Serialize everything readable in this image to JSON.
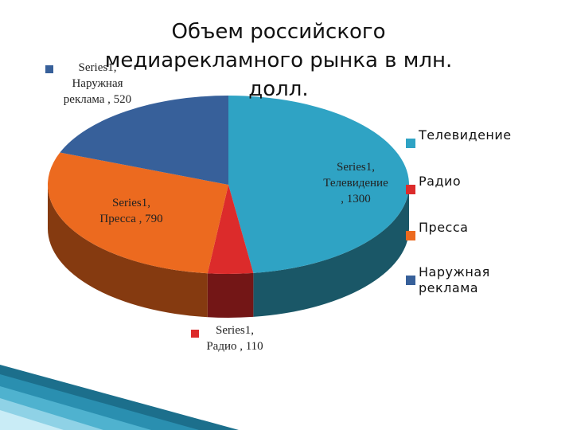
{
  "chart_data": {
    "type": "pie",
    "title": "Объем российского медиарекламного рынка в млн. долл.",
    "series_name": "Series1",
    "categories": [
      "Телевидение",
      "Радио",
      "Пресса",
      "Наружная реклама"
    ],
    "values": [
      1300,
      110,
      790,
      520
    ],
    "colors": [
      "#2fa3c4",
      "#dc2b2b",
      "#ec6a1f",
      "#37609a"
    ],
    "side_colors": [
      "#1a5767",
      "#731616",
      "#853a10",
      "#1e3556"
    ],
    "data_labels": [
      {
        "line1": "Series1,",
        "line2": "Телевидение",
        "line3": ", 1300"
      },
      {
        "line1": "Series1,",
        "line2": "Радио , 110"
      },
      {
        "line1": "Series1,",
        "line2": "Пресса , 790"
      },
      {
        "line1": "Series1,",
        "line2": "Наружная",
        "line3": "реклама , 520"
      }
    ],
    "legend": {
      "position": "right",
      "items": [
        {
          "label": "Телевидение",
          "color": "#2fa3c4"
        },
        {
          "label": "Радио",
          "color": "#dc2b2b"
        },
        {
          "label": "Пресса",
          "color": "#ec6a1f"
        },
        {
          "label": "Наружная реклама",
          "color": "#37609a"
        }
      ]
    }
  }
}
